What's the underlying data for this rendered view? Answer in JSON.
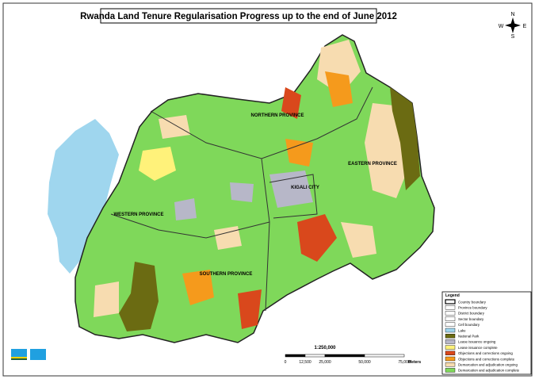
{
  "title": "Rwanda Land Tenure Regularisation Progress up to the end of June 2012",
  "compass": {
    "north": "N",
    "south": "S",
    "east": "E",
    "west": "W"
  },
  "provinces": [
    "NORTHERN PROVINCE",
    "EASTERN PROVINCE",
    "KIGALI CITY",
    "WESTERN PROVINCE",
    "SOUTHERN PROVINCE"
  ],
  "scale": {
    "ratio": "1:250,000",
    "ticks": [
      "0",
      "12,500",
      "25,000",
      "50,000",
      "75,000"
    ],
    "unit": "Meters"
  },
  "legend": {
    "title": "Legend",
    "items": [
      {
        "label": "Country boundary",
        "color": "#ffffff"
      },
      {
        "label": "Province boundary",
        "color": "#ffffff"
      },
      {
        "label": "District boundary",
        "color": "#ffffff"
      },
      {
        "label": "Sector boundary",
        "color": "#ffffff"
      },
      {
        "label": "Cell boundary",
        "color": "#ffffff"
      },
      {
        "label": "Lake",
        "color": "#9fd6ee"
      },
      {
        "label": "National Park",
        "color": "#6b6b12"
      },
      {
        "label": "Lease issuance ongoing",
        "color": "#b7b7c8"
      },
      {
        "label": "Lease issuance complete",
        "color": "#fff27a"
      },
      {
        "label": "Objections and corrections ongoing",
        "color": "#d9481c"
      },
      {
        "label": "Objections and corrections complete",
        "color": "#f59a1c"
      },
      {
        "label": "Demarcation and adjudication ongoing",
        "color": "#f7dcb0"
      },
      {
        "label": "Demarcation and adjudication complete",
        "color": "#7fd85a"
      }
    ]
  }
}
